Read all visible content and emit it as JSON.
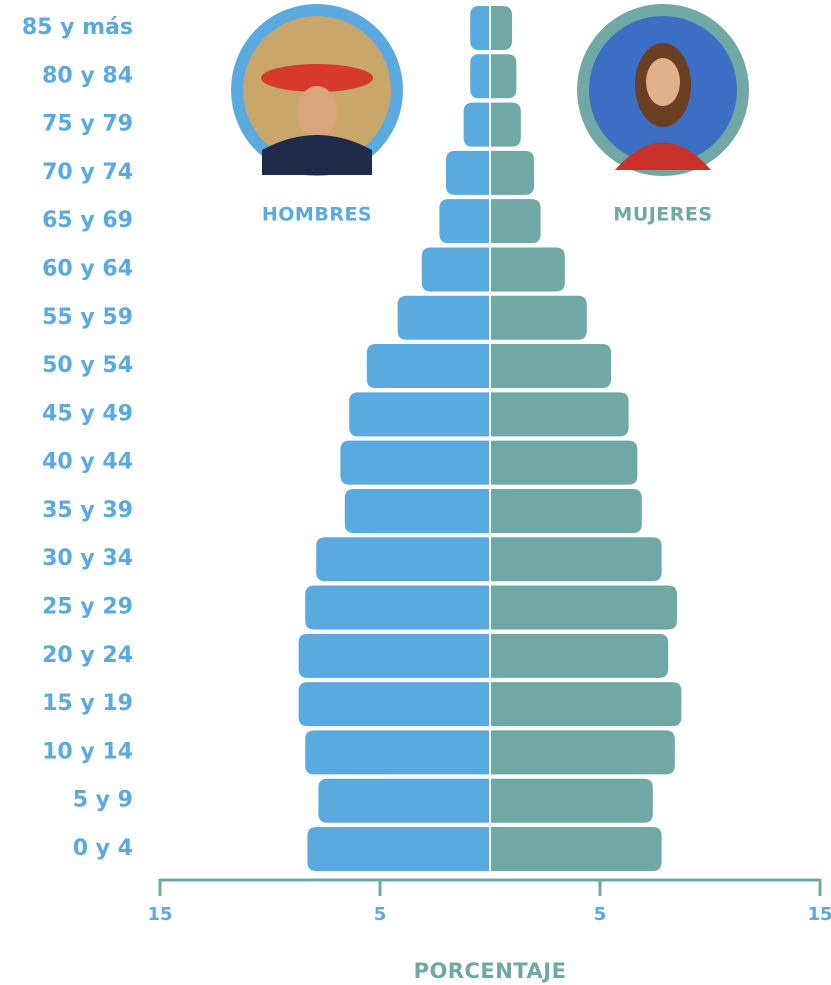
{
  "chart_data": {
    "type": "pyramid",
    "categories": [
      "0 y 4",
      "5 y 9",
      "10 y 14",
      "15 y 19",
      "20 y 24",
      "25 y 29",
      "30 y 34",
      "35 y 39",
      "40 y 44",
      "45 y 49",
      "50 y 54",
      "55 y 59",
      "60 y 64",
      "65 y 69",
      "70 y 74",
      "75 y 79",
      "80 y 84",
      "85 y más"
    ],
    "series": [
      {
        "name": "HOMBRES",
        "color": "#5aaae0",
        "values": [
          8.3,
          7.8,
          8.4,
          8.7,
          8.7,
          8.4,
          7.9,
          6.6,
          6.8,
          6.4,
          5.6,
          4.2,
          3.1,
          2.3,
          2.0,
          1.2,
          0.9,
          0.9
        ]
      },
      {
        "name": "MUJERES",
        "color": "#6fa8a5",
        "values": [
          7.8,
          7.4,
          8.4,
          8.7,
          8.1,
          8.5,
          7.8,
          6.9,
          6.7,
          6.3,
          5.5,
          4.4,
          3.4,
          2.3,
          2.0,
          1.4,
          1.2,
          1.0
        ]
      }
    ],
    "x_label": "PORCENTAJE",
    "xlim": [
      -15,
      15
    ],
    "xticks": [
      {
        "value": -15,
        "label": "15"
      },
      {
        "value": -5,
        "label": "5"
      },
      5,
      15
    ],
    "axis_color": "#6fa8a5"
  }
}
